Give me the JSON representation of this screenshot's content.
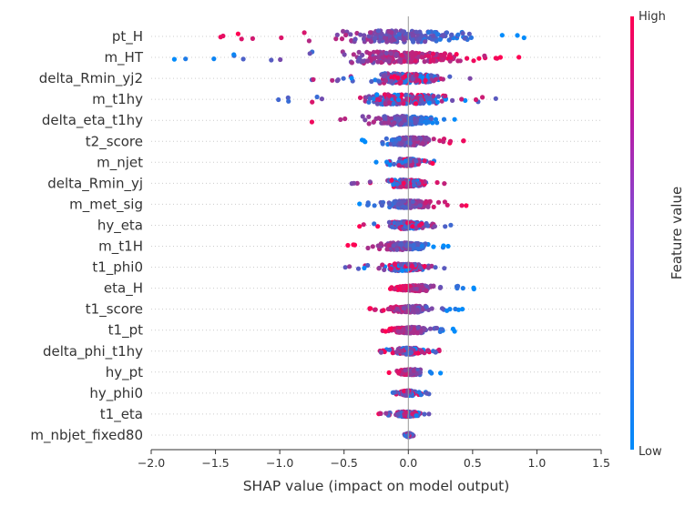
{
  "chart_data": {
    "type": "scatter",
    "subtype": "shap-beeswarm",
    "xlabel": "SHAP value (impact on model output)",
    "xlim": [
      -2.0,
      1.5
    ],
    "xticks": [
      -2.0,
      -1.5,
      -1.0,
      -0.5,
      0.0,
      0.5,
      1.0,
      1.5
    ],
    "xtick_labels": [
      "−2.0",
      "−1.5",
      "−1.0",
      "−0.5",
      "0.0",
      "0.5",
      "1.0",
      "1.5"
    ],
    "grid": false,
    "colorbar": {
      "title": "Feature value",
      "high_label": "High",
      "low_label": "Low",
      "high_color": "#ff0052",
      "low_color": "#008bfb"
    },
    "features": [
      {
        "name": "pt_H",
        "min": -1.46,
        "max": 0.9,
        "width": 0.17,
        "low_side": "positive"
      },
      {
        "name": "m_HT",
        "min": -1.82,
        "max": 0.86,
        "width": 0.17,
        "low_side": "negative"
      },
      {
        "name": "delta_Rmin_yj2",
        "min": -0.75,
        "max": 0.48,
        "width": 0.14,
        "low_side": "mixed"
      },
      {
        "name": "m_t1hy",
        "min": -1.01,
        "max": 0.68,
        "width": 0.14,
        "low_side": "mixed"
      },
      {
        "name": "delta_eta_t1hy",
        "min": -0.75,
        "max": 0.36,
        "width": 0.13,
        "low_side": "positive"
      },
      {
        "name": "t2_score",
        "min": -0.36,
        "max": 0.43,
        "width": 0.11,
        "low_side": "negative"
      },
      {
        "name": "m_njet",
        "min": -0.25,
        "max": 0.2,
        "width": 0.1,
        "low_side": "mixed"
      },
      {
        "name": "delta_Rmin_yj",
        "min": -0.44,
        "max": 0.28,
        "width": 0.1,
        "low_side": "mixed"
      },
      {
        "name": "m_met_sig",
        "min": -0.38,
        "max": 0.45,
        "width": 0.1,
        "low_side": "negative"
      },
      {
        "name": "hy_eta",
        "min": -0.38,
        "max": 0.33,
        "width": 0.1,
        "low_side": "mixed"
      },
      {
        "name": "m_t1H",
        "min": -0.47,
        "max": 0.31,
        "width": 0.1,
        "low_side": "positive"
      },
      {
        "name": "t1_phi0",
        "min": -0.49,
        "max": 0.28,
        "width": 0.1,
        "low_side": "mixed"
      },
      {
        "name": "eta_H",
        "min": -0.14,
        "max": 0.51,
        "width": 0.09,
        "low_side": "positive"
      },
      {
        "name": "t1_score",
        "min": -0.3,
        "max": 0.42,
        "width": 0.09,
        "low_side": "positive"
      },
      {
        "name": "t1_pt",
        "min": -0.2,
        "max": 0.36,
        "width": 0.09,
        "low_side": "positive"
      },
      {
        "name": "delta_phi_t1hy",
        "min": -0.22,
        "max": 0.24,
        "width": 0.09,
        "low_side": "mixed"
      },
      {
        "name": "hy_pt",
        "min": -0.15,
        "max": 0.25,
        "width": 0.08,
        "low_side": "positive"
      },
      {
        "name": "hy_phi0",
        "min": -0.12,
        "max": 0.16,
        "width": 0.07,
        "low_side": "mixed"
      },
      {
        "name": "t1_eta",
        "min": -0.23,
        "max": 0.16,
        "width": 0.07,
        "low_side": "mixed"
      },
      {
        "name": "m_nbjet_fixed80",
        "min": -0.03,
        "max": 0.04,
        "width": 0.05,
        "low_side": "mixed"
      }
    ]
  }
}
